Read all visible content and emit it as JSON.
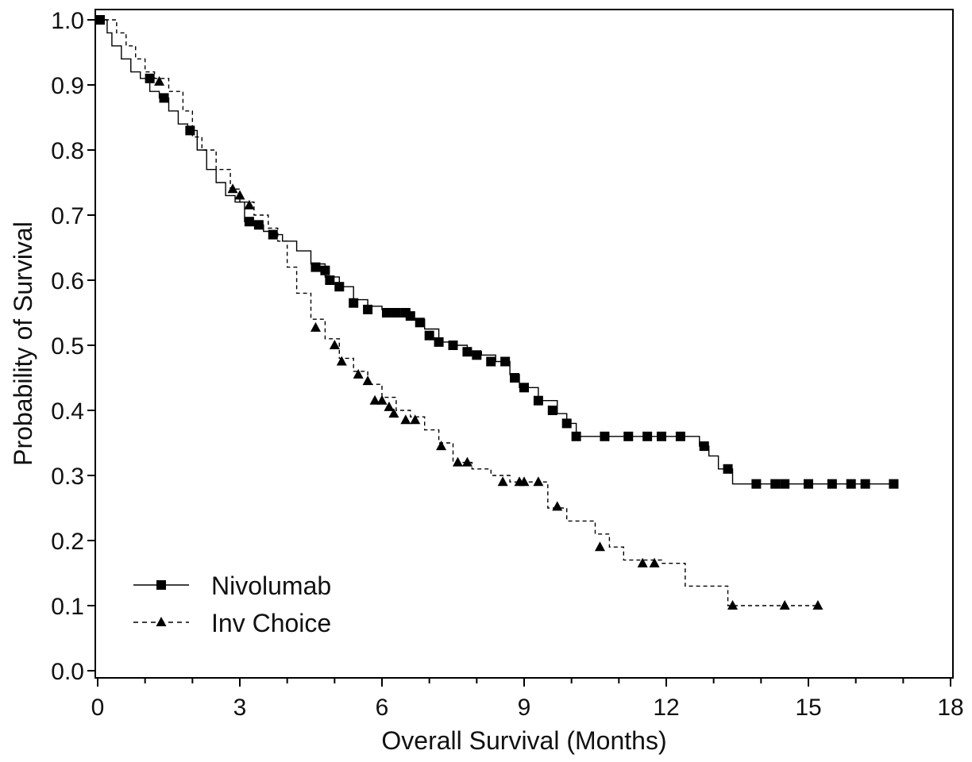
{
  "chart_data": {
    "type": "line",
    "title": "",
    "xlabel": "Overall Survival (Months)",
    "ylabel": "Probability of Survival",
    "xlim": [
      0,
      18
    ],
    "ylim": [
      0.0,
      1.0
    ],
    "xticks": [
      "0",
      "3",
      "6",
      "9",
      "12",
      "15",
      "18"
    ],
    "yticks": [
      "0.0",
      "0.1",
      "0.2",
      "0.3",
      "0.4",
      "0.5",
      "0.6",
      "0.7",
      "0.8",
      "0.9",
      "1.0"
    ],
    "grid": false,
    "legend_position": "bottom-left",
    "step": true,
    "series": [
      {
        "name": "Nivolumab",
        "line_style": "solid",
        "marker": "square",
        "color": "#000000",
        "x": [
          0,
          0.2,
          0.3,
          0.5,
          0.7,
          0.9,
          1.1,
          1.3,
          1.5,
          1.7,
          1.9,
          2.1,
          2.3,
          2.5,
          2.7,
          2.9,
          3.1,
          3.3,
          3.5,
          3.7,
          3.9,
          4.2,
          4.5,
          4.8,
          5.1,
          5.4,
          5.7,
          6.0,
          6.3,
          6.6,
          6.9,
          7.2,
          7.5,
          7.8,
          8.1,
          8.4,
          8.7,
          8.9,
          9.3,
          9.7,
          9.9,
          10.1,
          12.7,
          12.9,
          13.1,
          13.4,
          16.8
        ],
        "y": [
          1.0,
          0.98,
          0.96,
          0.94,
          0.92,
          0.91,
          0.89,
          0.88,
          0.86,
          0.84,
          0.83,
          0.8,
          0.77,
          0.75,
          0.73,
          0.72,
          0.69,
          0.685,
          0.675,
          0.67,
          0.66,
          0.645,
          0.625,
          0.605,
          0.59,
          0.57,
          0.56,
          0.555,
          0.55,
          0.54,
          0.525,
          0.505,
          0.5,
          0.49,
          0.485,
          0.475,
          0.455,
          0.435,
          0.415,
          0.395,
          0.38,
          0.36,
          0.345,
          0.33,
          0.31,
          0.287,
          0.287
        ],
        "censor_x": [
          0.05,
          1.1,
          1.4,
          1.95,
          3.2,
          3.4,
          3.7,
          4.6,
          4.8,
          4.9,
          5.1,
          5.4,
          5.7,
          6.1,
          6.3,
          6.5,
          6.6,
          6.8,
          7.0,
          7.2,
          7.5,
          7.8,
          8.0,
          8.3,
          8.6,
          8.8,
          9.0,
          9.3,
          9.6,
          9.9,
          10.1,
          10.7,
          11.2,
          11.6,
          11.9,
          12.3,
          12.8,
          13.3,
          13.9,
          14.3,
          14.5,
          15.0,
          15.5,
          15.9,
          16.2,
          16.8
        ],
        "censor_y": [
          1.0,
          0.91,
          0.88,
          0.83,
          0.69,
          0.685,
          0.67,
          0.62,
          0.615,
          0.6,
          0.59,
          0.565,
          0.555,
          0.55,
          0.55,
          0.55,
          0.545,
          0.535,
          0.515,
          0.505,
          0.5,
          0.49,
          0.485,
          0.475,
          0.475,
          0.45,
          0.435,
          0.415,
          0.4,
          0.38,
          0.36,
          0.36,
          0.36,
          0.36,
          0.36,
          0.36,
          0.345,
          0.31,
          0.287,
          0.287,
          0.287,
          0.287,
          0.287,
          0.287,
          0.287,
          0.287
        ]
      },
      {
        "name": "Inv Choice",
        "line_style": "dashed",
        "marker": "triangle",
        "color": "#000000",
        "x": [
          0,
          0.4,
          0.6,
          0.8,
          1.0,
          1.2,
          1.5,
          1.8,
          2.0,
          2.2,
          2.5,
          2.8,
          3.0,
          3.3,
          3.6,
          3.8,
          4.0,
          4.2,
          4.5,
          4.8,
          5.1,
          5.4,
          5.7,
          6.0,
          6.3,
          6.6,
          6.9,
          7.2,
          7.5,
          7.9,
          8.3,
          8.7,
          9.2,
          9.5,
          9.9,
          10.5,
          10.8,
          11.1,
          11.9,
          12.4,
          13.3,
          15.2
        ],
        "y": [
          1.0,
          0.98,
          0.96,
          0.94,
          0.92,
          0.91,
          0.89,
          0.86,
          0.82,
          0.8,
          0.77,
          0.74,
          0.72,
          0.7,
          0.68,
          0.66,
          0.62,
          0.58,
          0.54,
          0.51,
          0.48,
          0.46,
          0.44,
          0.42,
          0.4,
          0.39,
          0.37,
          0.35,
          0.32,
          0.31,
          0.3,
          0.29,
          0.29,
          0.25,
          0.23,
          0.21,
          0.19,
          0.17,
          0.165,
          0.13,
          0.1,
          0.1
        ],
        "censor_x": [
          1.3,
          2.85,
          3.0,
          3.2,
          4.6,
          5.0,
          5.15,
          5.5,
          5.7,
          5.85,
          6.0,
          6.15,
          6.25,
          6.5,
          6.7,
          7.25,
          7.6,
          7.8,
          8.55,
          8.9,
          9.0,
          9.3,
          9.7,
          10.6,
          11.5,
          11.75,
          13.4,
          14.5,
          15.2
        ],
        "censor_y": [
          0.905,
          0.74,
          0.73,
          0.715,
          0.527,
          0.5,
          0.475,
          0.455,
          0.445,
          0.415,
          0.415,
          0.405,
          0.395,
          0.385,
          0.385,
          0.345,
          0.32,
          0.32,
          0.29,
          0.29,
          0.29,
          0.29,
          0.252,
          0.19,
          0.165,
          0.165,
          0.1,
          0.1,
          0.1
        ]
      }
    ]
  }
}
